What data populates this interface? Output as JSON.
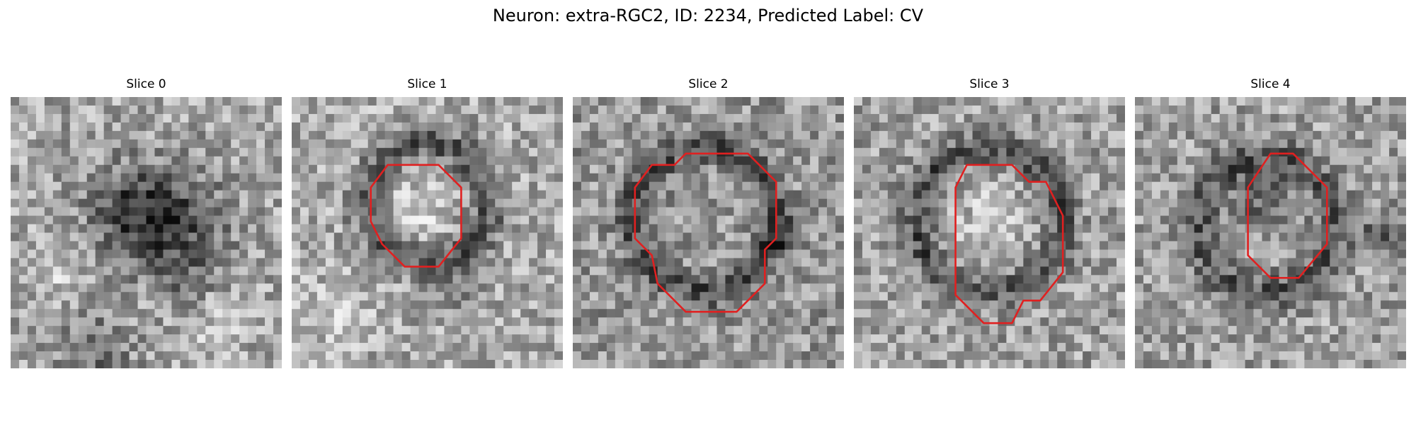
{
  "figure": {
    "title": "Neuron: extra-RGC2, ID: 2234, Predicted Label: CV",
    "contour_color": "#e02020"
  },
  "slices": [
    {
      "title": "Slice 0",
      "contour": false
    },
    {
      "title": "Slice 1",
      "contour": true
    },
    {
      "title": "Slice 2",
      "contour": true
    },
    {
      "title": "Slice 3",
      "contour": true
    },
    {
      "title": "Slice 4",
      "contour": true
    }
  ]
}
